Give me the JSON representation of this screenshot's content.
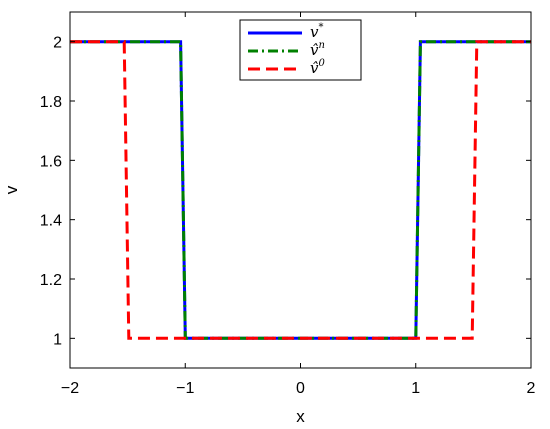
{
  "chart_data": {
    "type": "line",
    "xlabel": "x",
    "ylabel": "v",
    "xlim": [
      -2,
      2
    ],
    "ylim": [
      0.9,
      2.1
    ],
    "xticks": [
      "−2",
      "−1",
      "0",
      "1",
      "2"
    ],
    "yticks": [
      "1",
      "1.2",
      "1.4",
      "1.6",
      "1.8",
      "2"
    ],
    "grid": false,
    "legend_position": "top-center",
    "series": [
      {
        "name": "v*",
        "color": "#0000ff",
        "style": "solid",
        "points": [
          [
            -2,
            2
          ],
          [
            -1.04,
            2
          ],
          [
            -1,
            1
          ],
          [
            1,
            1
          ],
          [
            1.04,
            2
          ],
          [
            2,
            2
          ]
        ]
      },
      {
        "name": "v̂ⁿ",
        "color": "#008000",
        "style": "dashdot",
        "points": [
          [
            -2,
            2
          ],
          [
            -1.04,
            2
          ],
          [
            -1,
            1
          ],
          [
            1,
            1
          ],
          [
            1.04,
            2
          ],
          [
            2,
            2
          ]
        ]
      },
      {
        "name": "v̂⁰",
        "color": "#ff0000",
        "style": "dashed",
        "points": [
          [
            -2,
            2
          ],
          [
            -1.53,
            2
          ],
          [
            -1.49,
            1
          ],
          [
            1.49,
            1
          ],
          [
            1.53,
            2
          ],
          [
            2,
            2
          ]
        ]
      }
    ]
  }
}
